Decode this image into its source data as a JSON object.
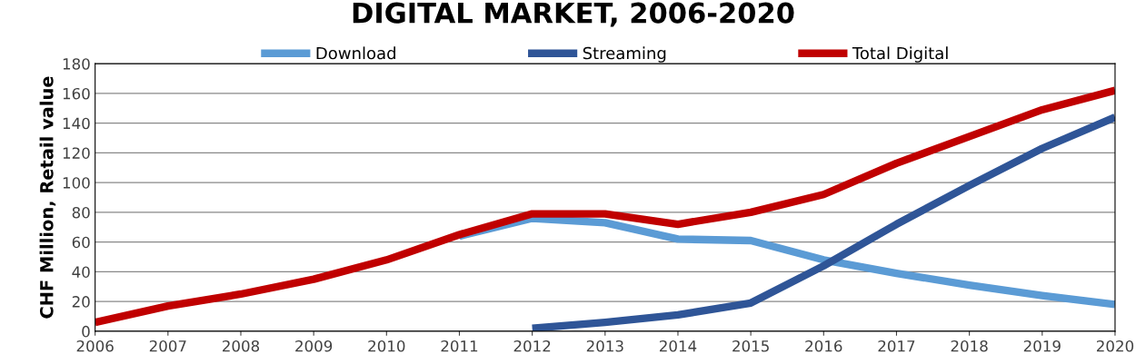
{
  "chart_data": {
    "type": "line",
    "title": "DIGITAL MARKET, 2006-2020",
    "ylabel": "CHF Million, Retail value",
    "categories": [
      "2006",
      "2007",
      "2008",
      "2009",
      "2010",
      "2011",
      "2012",
      "2013",
      "2014",
      "2015",
      "2016",
      "2017",
      "2018",
      "2019",
      "2020"
    ],
    "series": [
      {
        "name": "Download",
        "color": "#5b9bd5",
        "values": [
          null,
          null,
          null,
          null,
          null,
          64,
          76,
          73,
          62,
          61,
          48,
          39,
          31,
          24,
          18
        ]
      },
      {
        "name": "Streaming",
        "color": "#2f5597",
        "values": [
          null,
          null,
          null,
          null,
          null,
          null,
          2,
          6,
          11,
          19,
          44,
          72,
          98,
          123,
          144
        ]
      },
      {
        "name": "Total Digital",
        "color": "#c00000",
        "values": [
          6,
          17,
          25,
          35,
          48,
          65,
          79,
          79,
          72,
          80,
          92,
          113,
          131,
          149,
          162
        ]
      }
    ],
    "ylim": [
      0,
      180
    ],
    "yticks": [
      0,
      20,
      40,
      60,
      80,
      100,
      120,
      140,
      160,
      180
    ],
    "grid": "y",
    "legend": "top",
    "marker": "none",
    "line_style": "solid"
  }
}
